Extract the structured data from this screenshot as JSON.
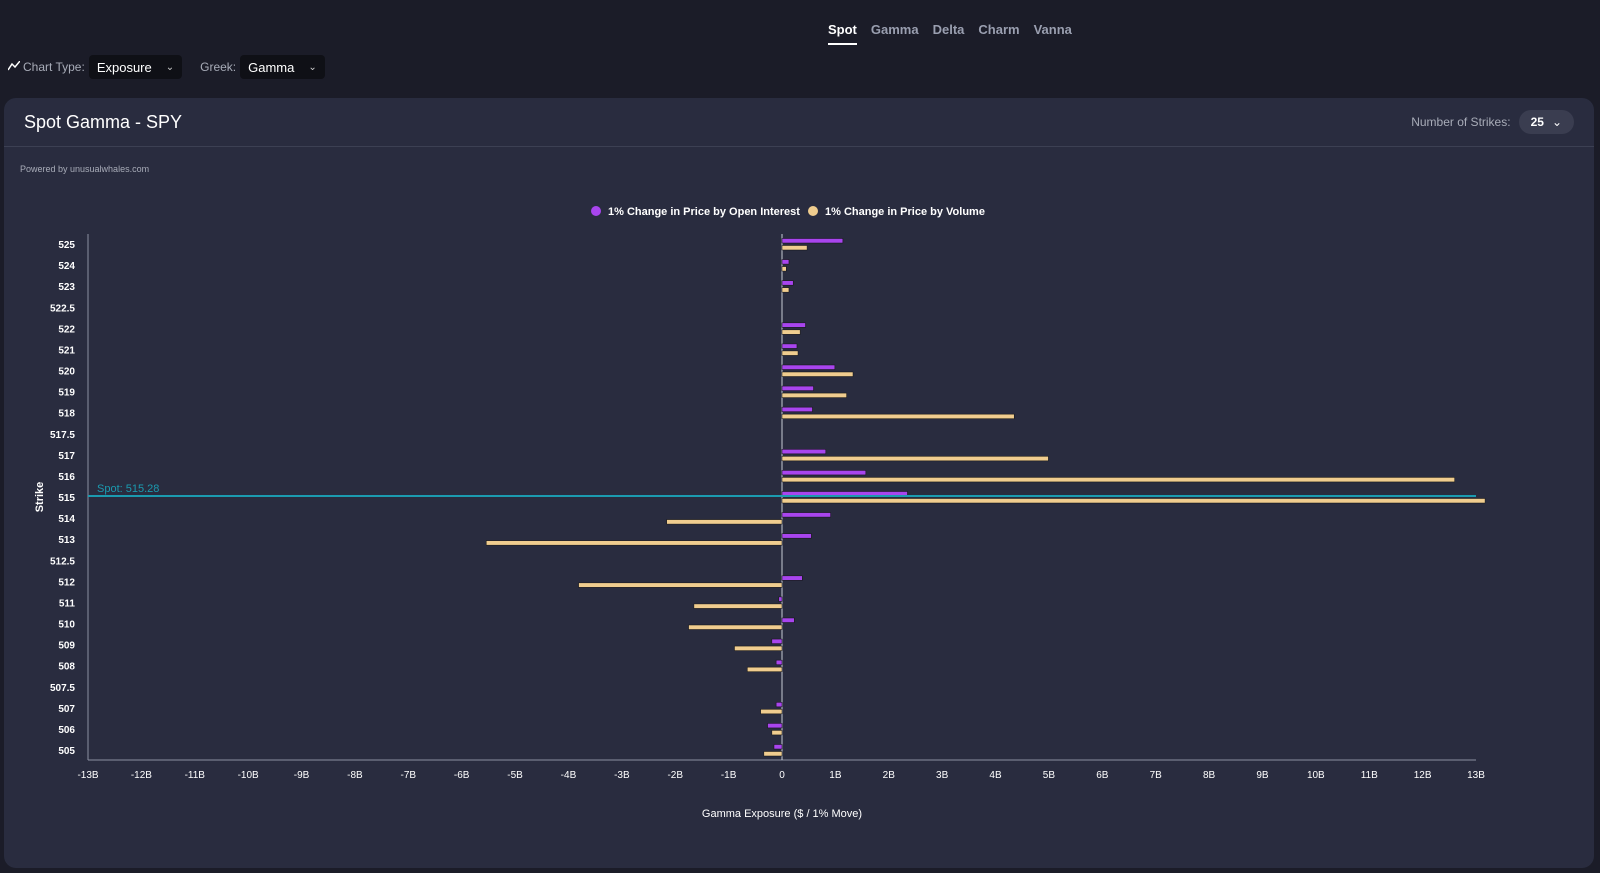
{
  "tabs": [
    {
      "label": "Spot",
      "active": true
    },
    {
      "label": "Gamma"
    },
    {
      "label": "Delta"
    },
    {
      "label": "Charm"
    },
    {
      "label": "Vanna"
    }
  ],
  "toolbar": {
    "chart_icon": "line-chart-icon",
    "chart_type_label": "Chart Type:",
    "chart_type_value": "Exposure",
    "greek_label": "Greek:",
    "greek_value": "Gamma"
  },
  "card": {
    "title": "Spot Gamma - SPY",
    "strikes_label": "Number of Strikes:",
    "strikes_value": "25",
    "powered": "Powered by unusualwhales.com"
  },
  "colors": {
    "oi": "#a845ee",
    "volume": "#f0cd8f",
    "spot": "#1b9bb0",
    "background": "#292c3f"
  },
  "chart_data": {
    "type": "bar",
    "orientation": "horizontal",
    "xlabel": "Gamma Exposure ($ / 1% Move)",
    "ylabel": "Strike",
    "xlim": [
      -13,
      13
    ],
    "x_unit": "B",
    "xticks": [
      "-13B",
      "-12B",
      "-11B",
      "-10B",
      "-9B",
      "-8B",
      "-7B",
      "-6B",
      "-5B",
      "-4B",
      "-3B",
      "-2B",
      "-1B",
      "0",
      "1B",
      "2B",
      "3B",
      "4B",
      "5B",
      "6B",
      "7B",
      "8B",
      "9B",
      "10B",
      "11B",
      "12B",
      "13B"
    ],
    "legend": "top-center",
    "spot": {
      "label": "Spot: 515.28",
      "value": 515.28
    },
    "categories": [
      "525",
      "524",
      "523",
      "522.5",
      "522",
      "521",
      "520",
      "519",
      "518",
      "517.5",
      "517",
      "516",
      "515",
      "514",
      "513",
      "512.5",
      "512",
      "511",
      "510",
      "509",
      "508",
      "507.5",
      "507",
      "506",
      "505"
    ],
    "series": [
      {
        "name": "1% Change in Price by Open Interest",
        "values": [
          1.14,
          0.13,
          0.21,
          0,
          0.44,
          0.28,
          0.99,
          0.59,
          0.57,
          0,
          0.82,
          1.57,
          2.35,
          0.91,
          0.55,
          0,
          0.38,
          -0.06,
          0.23,
          -0.19,
          -0.11,
          0,
          -0.11,
          -0.27,
          -0.15
        ]
      },
      {
        "name": "1% Change in Price by Volume",
        "values": [
          0.47,
          0.08,
          0.13,
          0,
          0.34,
          0.3,
          1.33,
          1.21,
          4.35,
          0,
          4.99,
          12.6,
          13.17,
          -2.16,
          -5.54,
          0,
          -3.81,
          -1.65,
          -1.75,
          -0.89,
          -0.65,
          0,
          -0.4,
          -0.19,
          -0.34
        ]
      }
    ]
  }
}
